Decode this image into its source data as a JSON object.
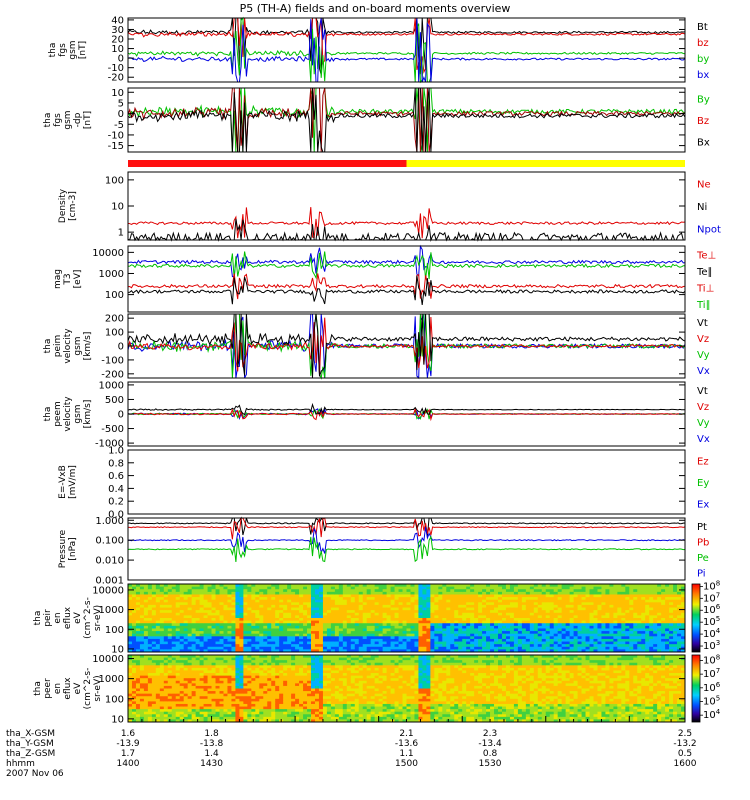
{
  "figure": {
    "title": "P5 (TH-A) fields and on-board moments overview",
    "date_label": "2007 Nov 06"
  },
  "chart_data": [
    {
      "id": "fgs-gsm",
      "type": "line",
      "ylabel": [
        "tha",
        "fgs",
        "gsm",
        "[nT]"
      ],
      "ylim": [
        -25,
        42
      ],
      "yticks": [
        40,
        30,
        20,
        10,
        0,
        -10,
        -20
      ],
      "legend": [
        {
          "label": "Bt",
          "color": "#000000"
        },
        {
          "label": "bz",
          "color": "#e00000"
        },
        {
          "label": "by",
          "color": "#00c000"
        },
        {
          "label": "bx",
          "color": "#0000e0"
        }
      ],
      "series": [
        {
          "name": "Bt",
          "color": "#000000",
          "base": 27,
          "amp": 2,
          "spikes": 12
        },
        {
          "name": "bz",
          "color": "#e00000",
          "base": 25,
          "amp": 2,
          "spikes": 10
        },
        {
          "name": "by",
          "color": "#00c000",
          "base": 5,
          "amp": 2,
          "spikes": 10
        },
        {
          "name": "bx",
          "color": "#0000e0",
          "base": -1,
          "amp": 2,
          "spikes": 12
        }
      ]
    },
    {
      "id": "fgs-gsm-dp",
      "type": "line",
      "ylabel": [
        "tha",
        "fgs",
        "gsm",
        "-dp",
        "[nT]"
      ],
      "ylim": [
        -18,
        12
      ],
      "yticks": [
        10,
        5,
        0,
        -5,
        -10,
        -15
      ],
      "legend": [
        {
          "label": "By",
          "color": "#00c000"
        },
        {
          "label": "Bz",
          "color": "#e00000"
        },
        {
          "label": "Bx",
          "color": "#000000"
        }
      ],
      "series": [
        {
          "name": "By",
          "color": "#00c000",
          "base": 1,
          "amp": 2,
          "spikes": 10
        },
        {
          "name": "Bz",
          "color": "#a00000",
          "base": 0,
          "amp": 2,
          "spikes": 10
        },
        {
          "name": "Bx",
          "color": "#000000",
          "base": -1,
          "amp": 2,
          "spikes": 10
        }
      ]
    },
    {
      "id": "mode-bar",
      "type": "bar",
      "segments": [
        {
          "from": 1400,
          "to": 1500,
          "color": "#ff1010"
        },
        {
          "from": 1500,
          "to": 1600,
          "color": "#ffff00"
        }
      ]
    },
    {
      "id": "density",
      "type": "line",
      "scale": "log",
      "ylabel": [
        "Density",
        "[cm-3]"
      ],
      "ylim": [
        0.5,
        200
      ],
      "yticks": [
        100,
        10,
        1
      ],
      "legend": [
        {
          "label": "Ne",
          "color": "#e00000"
        },
        {
          "label": "Ni",
          "color": "#000000"
        },
        {
          "label": "Npot",
          "color": "#0000e0"
        }
      ],
      "series": [
        {
          "name": "Ne",
          "color": "#e00000",
          "base": 2.2,
          "amp": 0.1,
          "spikes": 8
        },
        {
          "name": "Ni",
          "color": "#000000",
          "base": 0.6,
          "amp": 0.4,
          "spikes": 10
        }
      ]
    },
    {
      "id": "temperature",
      "type": "line",
      "scale": "log",
      "ylabel": [
        "mag",
        "T3",
        "[eV]"
      ],
      "ylim": [
        15,
        20000
      ],
      "yticks": [
        10000,
        1000,
        100
      ],
      "legend": [
        {
          "label": "Te⊥",
          "color": "#e00000"
        },
        {
          "label": "Te∥",
          "color": "#000000"
        },
        {
          "label": "Ti⊥",
          "color": "#e00000"
        },
        {
          "label": "Ti∥",
          "color": "#00c000"
        }
      ],
      "series": [
        {
          "name": "Ti⊥",
          "color": "#0000e0",
          "base": 3500,
          "amp": 0.15,
          "spikes": 10
        },
        {
          "name": "Ti∥",
          "color": "#00c000",
          "base": 2300,
          "amp": 0.15,
          "spikes": 10
        },
        {
          "name": "Te⊥",
          "color": "#e00000",
          "base": 250,
          "amp": 0.15,
          "spikes": 10
        },
        {
          "name": "Te∥",
          "color": "#000000",
          "base": 140,
          "amp": 0.15,
          "spikes": 10
        }
      ]
    },
    {
      "id": "peim-velocity",
      "type": "line",
      "ylabel": [
        "tha",
        "peim",
        "velocity",
        "gsm",
        "[km/s]"
      ],
      "ylim": [
        -230,
        230
      ],
      "yticks": [
        200,
        100,
        0,
        -100,
        -200
      ],
      "legend": [
        {
          "label": "Vt",
          "color": "#000000"
        },
        {
          "label": "Vz",
          "color": "#e00000"
        },
        {
          "label": "Vy",
          "color": "#00c000"
        },
        {
          "label": "Vx",
          "color": "#0000e0"
        }
      ],
      "series": [
        {
          "name": "Vx",
          "color": "#0000e0",
          "base": 0,
          "amp": 30,
          "spikes": 12
        },
        {
          "name": "Vy",
          "color": "#00c000",
          "base": 0,
          "amp": 30,
          "spikes": 12
        },
        {
          "name": "Vz",
          "color": "#e00000",
          "base": 0,
          "amp": 20,
          "spikes": 10
        },
        {
          "name": "Vt",
          "color": "#000000",
          "base": 50,
          "amp": 30,
          "spikes": 12
        }
      ]
    },
    {
      "id": "peem-velocity",
      "type": "line",
      "ylabel": [
        "tha",
        "peem",
        "velocity",
        "gsm",
        "[km/s]"
      ],
      "ylim": [
        -1100,
        1100
      ],
      "yticks": [
        1000,
        500,
        0,
        -500,
        -1000
      ],
      "legend": [
        {
          "label": "Vt",
          "color": "#000000"
        },
        {
          "label": "Vz",
          "color": "#e00000"
        },
        {
          "label": "Vy",
          "color": "#00c000"
        },
        {
          "label": "Vx",
          "color": "#0000e0"
        }
      ],
      "series": [
        {
          "name": "Vx",
          "color": "#0000e0",
          "base": 0,
          "amp": 20,
          "spikes": 8
        },
        {
          "name": "Vy",
          "color": "#00c000",
          "base": 0,
          "amp": 20,
          "spikes": 8
        },
        {
          "name": "Vz",
          "color": "#e00000",
          "base": 0,
          "amp": 20,
          "spikes": 8
        },
        {
          "name": "Vt",
          "color": "#000000",
          "base": 150,
          "amp": 20,
          "spikes": 8
        }
      ]
    },
    {
      "id": "efield",
      "type": "line",
      "ylabel": [
        "E=-VxB",
        "[mV/m]"
      ],
      "ylim": [
        0,
        1.0
      ],
      "yticks": [
        1.0,
        0.8,
        0.6,
        0.4,
        0.2,
        0.0
      ],
      "tick_labels": [
        "1.0",
        "0.8",
        "0.6",
        "0.4",
        "0.2",
        "0.0"
      ],
      "legend": [
        {
          "label": "Ez",
          "color": "#e00000"
        },
        {
          "label": "Ey",
          "color": "#00c000"
        },
        {
          "label": "Ex",
          "color": "#0000e0"
        }
      ],
      "series": []
    },
    {
      "id": "pressure",
      "type": "line",
      "scale": "log",
      "ylabel": [
        "Pressure",
        "[nPa]"
      ],
      "ylim": [
        0.001,
        1.3
      ],
      "yticks": [
        1.0,
        0.1,
        0.01,
        0.001
      ],
      "tick_labels": [
        "1.000",
        "0.100",
        "0.010",
        "0.001"
      ],
      "legend": [
        {
          "label": "Pt",
          "color": "#000000"
        },
        {
          "label": "Pb",
          "color": "#e00000"
        },
        {
          "label": "Pe",
          "color": "#00c000"
        },
        {
          "label": "Pi",
          "color": "#0000e0"
        }
      ],
      "series": [
        {
          "name": "Pt",
          "color": "#000000",
          "base": 0.7,
          "amp": 0.05,
          "spikes": 6
        },
        {
          "name": "Pb",
          "color": "#e00000",
          "base": 0.45,
          "amp": 0.05,
          "spikes": 6
        },
        {
          "name": "Pi",
          "color": "#0000e0",
          "base": 0.1,
          "amp": 0.05,
          "spikes": 8
        },
        {
          "name": "Pe",
          "color": "#00c000",
          "base": 0.035,
          "amp": 0.05,
          "spikes": 8
        }
      ]
    },
    {
      "id": "peir-eflux",
      "type": "heatmap",
      "scale": "log",
      "ylabel": [
        "tha",
        "peir",
        "en",
        "eflux",
        "eV",
        "(cm^2-s-",
        "sr-eV)"
      ],
      "ylim": [
        7,
        20000
      ],
      "yticks": [
        10000,
        1000,
        100,
        10
      ],
      "colorbar": {
        "min_exp": 2.5,
        "max_exp": 8.2,
        "exps": [
          8,
          7,
          6,
          5,
          4,
          3
        ]
      }
    },
    {
      "id": "peer-eflux",
      "type": "heatmap",
      "scale": "log",
      "ylabel": [
        "tha",
        "peer",
        "en",
        "eflux",
        "eV",
        "(cm^2-s-",
        "sr-eV)"
      ],
      "ylim": [
        7,
        15000
      ],
      "yticks": [
        10000,
        1000,
        100,
        10
      ],
      "colorbar": {
        "min_exp": 3.5,
        "max_exp": 8.4,
        "exps": [
          8,
          7,
          6,
          5,
          4
        ]
      }
    }
  ],
  "time_axis": {
    "range": [
      1400,
      1600
    ],
    "events": [
      1440,
      1468,
      1506
    ],
    "rows": [
      {
        "label": "tha_X-GSM",
        "values": [
          "1.6",
          "1.8",
          "2.1",
          "2.3",
          "2.5"
        ]
      },
      {
        "label": "tha_Y-GSM",
        "values": [
          "-13.9",
          "-13.8",
          "-13.6",
          "-13.4",
          "-13.2"
        ]
      },
      {
        "label": "tha_Z-GSM",
        "values": [
          "1.7",
          "1.4",
          "1.1",
          "0.8",
          "0.5"
        ]
      },
      {
        "label": "hhmm",
        "values": [
          "1400",
          "1430",
          "1500",
          "1530",
          "1600"
        ]
      }
    ]
  }
}
